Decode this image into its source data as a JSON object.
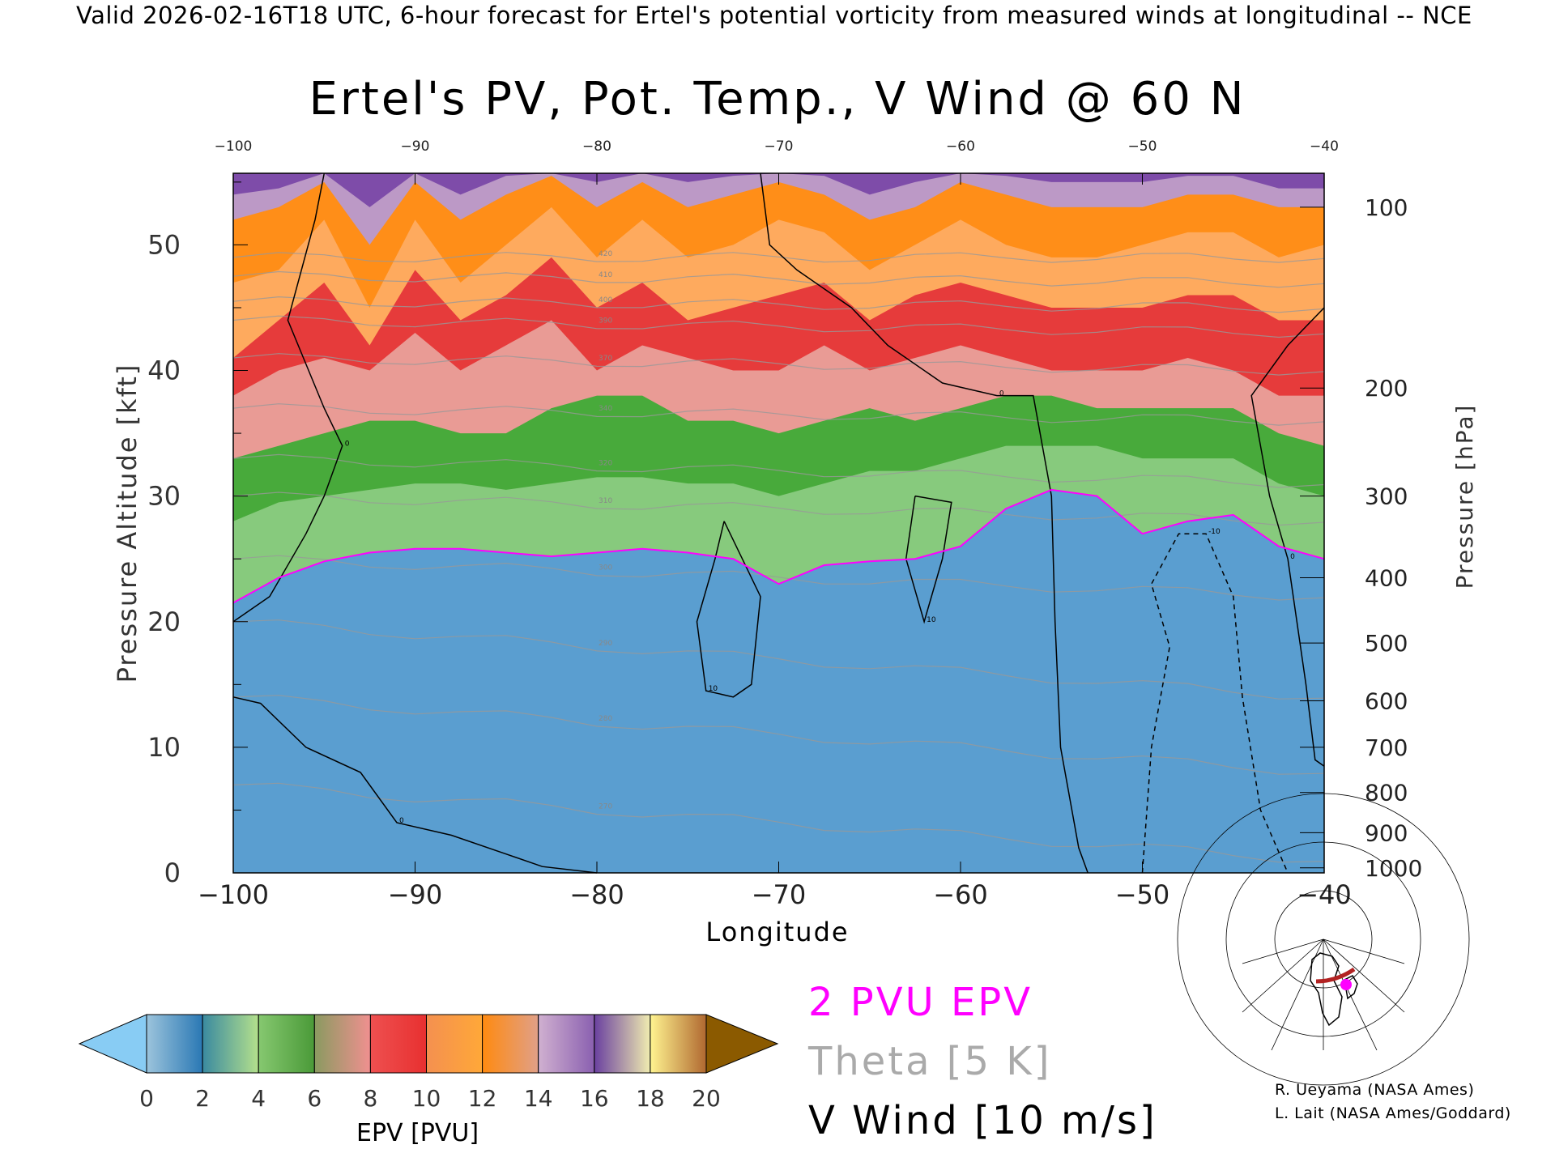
{
  "header": {
    "valid_line": "Valid 2026-02-16T18 UTC, 6-hour forecast for Ertel's potential vorticity from measured winds at longitudinal -- NCE",
    "title": "Ertel's PV, Pot. Temp., V Wind @ 60 N"
  },
  "legend": {
    "pvu": "2 PVU EPV",
    "theta": "Theta [5 K]",
    "wind": "V Wind [10 m/s]"
  },
  "credits": [
    "R. Ueyama (NASA Ames)",
    "L. Lait (NASA Ames/Goddard)"
  ],
  "colors": {
    "pvu_contour": "#ff00ff",
    "theta_lines": "#999999",
    "wind_contours": "#000000",
    "map_track": "#b22222",
    "map_point": "#ff00ff"
  },
  "chart_data": {
    "type": "heatmap",
    "title": "Ertel's PV, Pot. Temp., V Wind @ 60 N",
    "xlabel": "Longitude",
    "ylabel": "Pressure Altitude [kft]",
    "y2label": "Pressure [hPa]",
    "xlim": [
      -100,
      -40
    ],
    "ylim": [
      0,
      55.7
    ],
    "x_ticks": [
      "-100",
      "-90",
      "-80",
      "-70",
      "-60",
      "-50",
      "-40"
    ],
    "x_tick_values": [
      -100,
      -90,
      -80,
      -70,
      -60,
      -50,
      -40
    ],
    "y_ticks": [
      "0",
      "10",
      "20",
      "30",
      "40",
      "50"
    ],
    "y_tick_values": [
      0,
      10,
      20,
      30,
      40,
      50
    ],
    "pressure_ticks": [
      {
        "label": "100",
        "kft": 53.0
      },
      {
        "label": "200",
        "kft": 38.6
      },
      {
        "label": "300",
        "kft": 30.0
      },
      {
        "label": "400",
        "kft": 23.5
      },
      {
        "label": "500",
        "kft": 18.3
      },
      {
        "label": "600",
        "kft": 13.7
      },
      {
        "label": "700",
        "kft": 10.0
      },
      {
        "label": "800",
        "kft": 6.4
      },
      {
        "label": "900",
        "kft": 3.2
      },
      {
        "label": "1000",
        "kft": 0.4
      }
    ],
    "colorbar": {
      "label": "EPV [PVU]",
      "tick_labels": [
        "0",
        "2",
        "4",
        "6",
        "8",
        "10",
        "12",
        "14",
        "16",
        "18",
        "20"
      ],
      "under_color": "#88ccf4",
      "over_color": "#8b5a00",
      "segments": [
        [
          "#9cc4dc",
          "#2a78b4"
        ],
        [
          "#3a8aa0",
          "#b4e08c"
        ],
        [
          "#86c870",
          "#4a9a38"
        ],
        [
          "#8a9a60",
          "#f09090"
        ],
        [
          "#ee5050",
          "#e83030"
        ],
        [
          "#f49050",
          "#ffa838"
        ],
        [
          "#ff8a10",
          "#e0a088"
        ],
        [
          "#d0b0d0",
          "#8a60b0"
        ],
        [
          "#6a40a0",
          "#f0ecb0"
        ],
        [
          "#fff490",
          "#b06830"
        ]
      ]
    },
    "lon_grid": [
      -100,
      -97.5,
      -95,
      -92.5,
      -90,
      -87.5,
      -85,
      -82.5,
      -80,
      -77.5,
      -75,
      -72.5,
      -70,
      -67.5,
      -65,
      -62.5,
      -60,
      -57.5,
      -55,
      -52.5,
      -50,
      -47.5,
      -45,
      -42.5,
      -40
    ],
    "epv_level_heights_kft": [
      {
        "pvu": 2,
        "color": "#8acc78",
        "kft": [
          21.5,
          23.5,
          24.8,
          25.5,
          25.8,
          25.8,
          25.5,
          25.2,
          25.5,
          25.8,
          25.5,
          25,
          23,
          24.5,
          24.8,
          25,
          26,
          29,
          30.5,
          30,
          27,
          28,
          28.5,
          26,
          25
        ]
      },
      {
        "pvu": 4,
        "color": "#44a838",
        "kft": [
          28,
          29.5,
          30,
          30.5,
          31,
          31,
          30.5,
          31,
          31.5,
          31.5,
          31,
          31,
          30,
          31,
          32,
          32,
          33,
          34,
          34,
          34,
          33,
          33,
          33,
          31,
          30
        ]
      },
      {
        "pvu": 6,
        "color": "#f29a9a",
        "kft": [
          33,
          34,
          35,
          36,
          36,
          35,
          35,
          37,
          38,
          38,
          36,
          36,
          35,
          36,
          37,
          36,
          37,
          38,
          38,
          37,
          37,
          37,
          37,
          35,
          34
        ]
      },
      {
        "pvu": 8,
        "color": "#e63636",
        "kft": [
          38,
          40,
          41,
          40,
          43,
          40,
          42,
          44,
          40,
          42,
          41,
          40,
          40,
          42,
          40,
          41,
          42,
          41,
          40,
          40,
          40,
          41,
          40,
          38,
          38
        ]
      },
      {
        "pvu": 10,
        "color": "#ffb060",
        "kft": [
          41,
          44,
          47,
          42,
          48,
          44,
          46,
          49,
          45,
          47,
          44,
          45,
          46,
          47,
          44,
          46,
          47,
          46,
          45,
          45,
          45,
          46,
          46,
          44,
          44
        ]
      },
      {
        "pvu": 12,
        "color": "#ff8c14",
        "kft": [
          47,
          48,
          52,
          45,
          52,
          47,
          50,
          53,
          49,
          52,
          49,
          50,
          52,
          51,
          48,
          50,
          52,
          50,
          49,
          49,
          50,
          51,
          51,
          49,
          50
        ]
      },
      {
        "pvu": 14,
        "color": "#b89ad0",
        "kft": [
          52,
          53,
          55,
          50,
          55,
          52,
          54,
          55.5,
          53,
          55,
          53,
          54,
          55,
          54,
          52,
          53,
          55,
          54,
          53,
          53,
          53,
          54,
          54,
          53,
          53
        ]
      },
      {
        "pvu": 16,
        "color": "#7a48a8",
        "kft": [
          54,
          54.5,
          55.7,
          53,
          55.7,
          54,
          55.5,
          55.7,
          55,
          55.7,
          55,
          55.5,
          55.7,
          55.5,
          54,
          55,
          55.7,
          55.5,
          55,
          55,
          55,
          55.5,
          55.5,
          54.5,
          54.5
        ]
      }
    ],
    "base_color": "#5a9ed0",
    "theta_lines": [
      {
        "label": "270",
        "kft_west": 7,
        "kft_east": 1
      },
      {
        "label": "280",
        "kft_west": 14,
        "kft_east": 8
      },
      {
        "label": "290",
        "kft_west": 20,
        "kft_east": 14
      },
      {
        "label": "300",
        "kft_west": 25,
        "kft_east": 22
      },
      {
        "label": "310",
        "kft_west": 30,
        "kft_east": 28
      },
      {
        "label": "320",
        "kft_west": 33,
        "kft_east": 31
      },
      {
        "label": "340",
        "kft_west": 37,
        "kft_east": 36
      },
      {
        "label": "370",
        "kft_west": 41,
        "kft_east": 40
      },
      {
        "label": "390",
        "kft_west": 44,
        "kft_east": 43
      },
      {
        "label": "400",
        "kft_west": 45.5,
        "kft_east": 45
      },
      {
        "label": "410",
        "kft_west": 47.5,
        "kft_east": 47
      },
      {
        "label": "420",
        "kft_west": 49,
        "kft_east": 49
      }
    ],
    "v_wind_contours": [
      {
        "label": "0",
        "dashed": false,
        "points": [
          [
            -100,
            14
          ],
          [
            -98.5,
            13.5
          ],
          [
            -96,
            10
          ],
          [
            -93,
            8
          ],
          [
            -91,
            4
          ],
          [
            -88,
            3
          ],
          [
            -85,
            1.5
          ],
          [
            -83,
            0.5
          ],
          [
            -80,
            0
          ]
        ]
      },
      {
        "label": "0",
        "dashed": false,
        "points": [
          [
            -100,
            20
          ],
          [
            -98,
            22
          ],
          [
            -96,
            27
          ],
          [
            -95,
            30
          ],
          [
            -94,
            34
          ],
          [
            -95,
            37
          ],
          [
            -97,
            44
          ],
          [
            -95.5,
            52
          ],
          [
            -95,
            55.7
          ]
        ]
      },
      {
        "label": "0",
        "dashed": false,
        "points": [
          [
            -71,
            55.7
          ],
          [
            -70.5,
            50
          ],
          [
            -69,
            48
          ],
          [
            -66,
            45
          ],
          [
            -64,
            42
          ],
          [
            -61,
            39
          ],
          [
            -58,
            38
          ],
          [
            -56,
            38
          ],
          [
            -55,
            30
          ],
          [
            -54.8,
            20
          ],
          [
            -54.5,
            10
          ],
          [
            -53.5,
            2
          ],
          [
            -53,
            0
          ]
        ]
      },
      {
        "label": "10",
        "dashed": false,
        "points": [
          [
            -73,
            28
          ],
          [
            -71,
            22
          ],
          [
            -71.5,
            15
          ],
          [
            -72.5,
            14
          ],
          [
            -74,
            14.5
          ],
          [
            -74.5,
            20
          ],
          [
            -73.5,
            25
          ],
          [
            -73,
            28
          ]
        ]
      },
      {
        "label": "10",
        "dashed": false,
        "points": [
          [
            -62.5,
            30
          ],
          [
            -60.5,
            29.5
          ],
          [
            -61,
            25
          ],
          [
            -62,
            20
          ],
          [
            -63,
            25
          ],
          [
            -62.5,
            30
          ]
        ]
      },
      {
        "label": "0",
        "dashed": false,
        "points": [
          [
            -40,
            45
          ],
          [
            -42,
            42
          ],
          [
            -44,
            38
          ],
          [
            -43,
            30
          ],
          [
            -42,
            25
          ],
          [
            -41,
            15
          ],
          [
            -40.5,
            9
          ],
          [
            -40,
            8.5
          ]
        ]
      },
      {
        "label": "-10",
        "dashed": true,
        "points": [
          [
            -50,
            0
          ],
          [
            -49.5,
            10
          ],
          [
            -48.5,
            18
          ],
          [
            -49.5,
            23
          ],
          [
            -48,
            27
          ],
          [
            -46.5,
            27
          ],
          [
            -45,
            22
          ],
          [
            -44.5,
            14
          ],
          [
            -43.5,
            5
          ],
          [
            -42,
            0
          ]
        ]
      }
    ]
  }
}
